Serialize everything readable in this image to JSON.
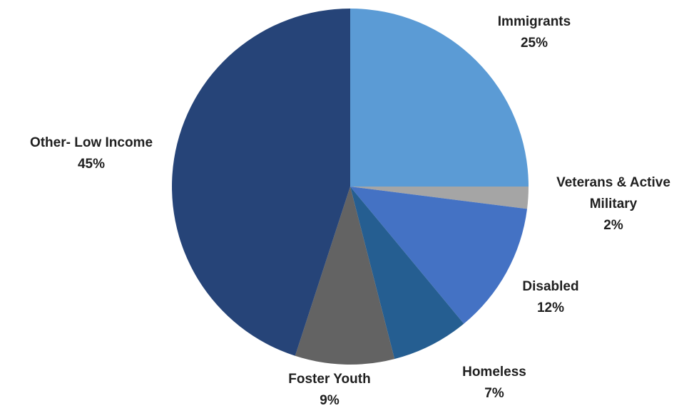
{
  "chart_data": {
    "type": "pie",
    "title": "",
    "slices": [
      {
        "label": [
          "Immigrants"
        ],
        "percent_label": "25%",
        "value": 25,
        "color": "#5b9bd5"
      },
      {
        "label": [
          "Veterans & Active",
          "Military"
        ],
        "percent_label": "2%",
        "value": 2,
        "color": "#a5a5a5"
      },
      {
        "label": [
          "Disabled"
        ],
        "percent_label": "12%",
        "value": 12,
        "color": "#4472c4"
      },
      {
        "label": [
          "Homeless"
        ],
        "percent_label": "7%",
        "value": 7,
        "color": "#255e91"
      },
      {
        "label": [
          "Foster Youth"
        ],
        "percent_label": "9%",
        "value": 9,
        "color": "#636363"
      },
      {
        "label": [
          "Other- Low Income"
        ],
        "percent_label": "45%",
        "value": 45,
        "color": "#264478"
      }
    ],
    "start_angle": "12 o'clock",
    "direction": "clockwise",
    "legend": "none",
    "data_labels": "outside"
  }
}
